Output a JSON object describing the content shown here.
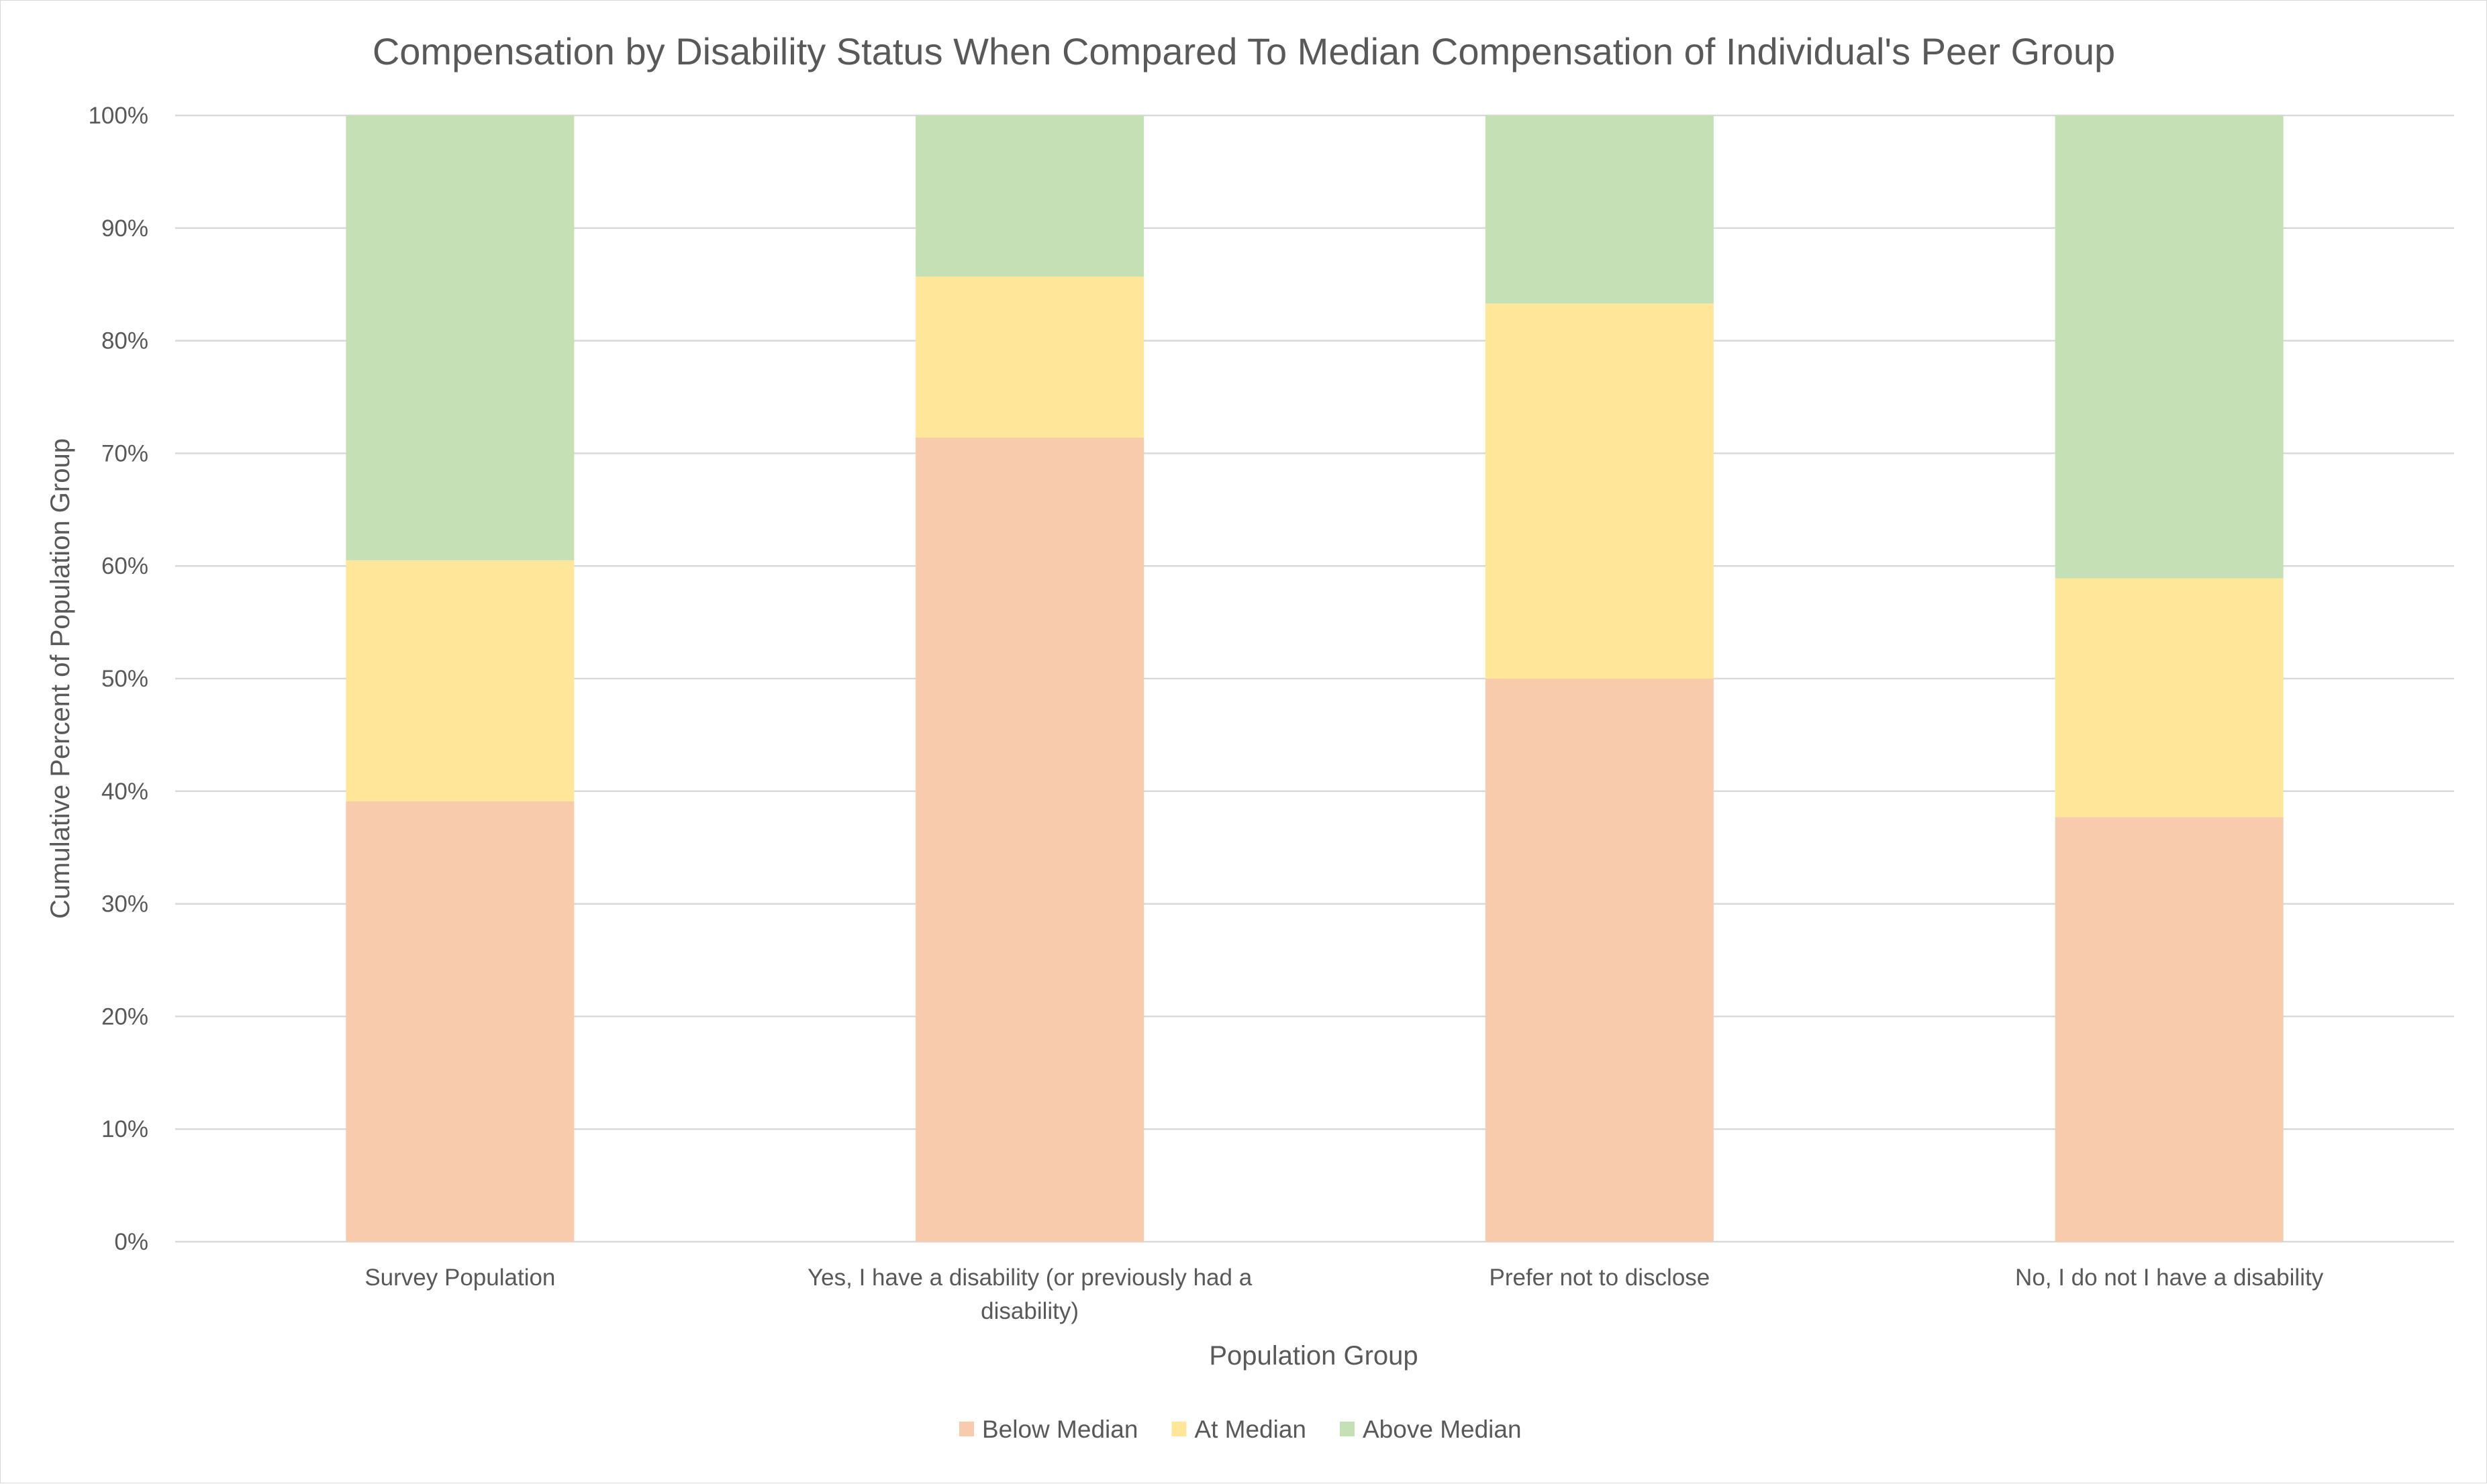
{
  "chart_data": {
    "type": "bar",
    "stacked": true,
    "title": "Compensation by Disability Status When Compared To Median Compensation of Individual's Peer Group",
    "xlabel": "Population Group",
    "ylabel": "Cumulative Percent of Population Group",
    "ylim": [
      0,
      100
    ],
    "y_ticks": [
      "0%",
      "10%",
      "20%",
      "30%",
      "40%",
      "50%",
      "60%",
      "70%",
      "80%",
      "90%",
      "100%"
    ],
    "grid": true,
    "legend_position": "bottom",
    "categories": [
      [
        "Survey Population"
      ],
      [
        "Yes, I have a disability (or previously had a",
        "disability)"
      ],
      [
        "Prefer not to disclose"
      ],
      [
        "No, I do not I have a disability"
      ]
    ],
    "series": [
      {
        "name": "Below Median",
        "color": "#f8cbad",
        "values": [
          39.1,
          71.4,
          50.0,
          37.7
        ]
      },
      {
        "name": "At Median",
        "color": "#ffe699",
        "values": [
          21.4,
          14.3,
          33.3,
          21.2
        ]
      },
      {
        "name": "Above Median",
        "color": "#c5e0b4",
        "values": [
          39.5,
          14.3,
          16.7,
          41.1
        ]
      }
    ]
  }
}
